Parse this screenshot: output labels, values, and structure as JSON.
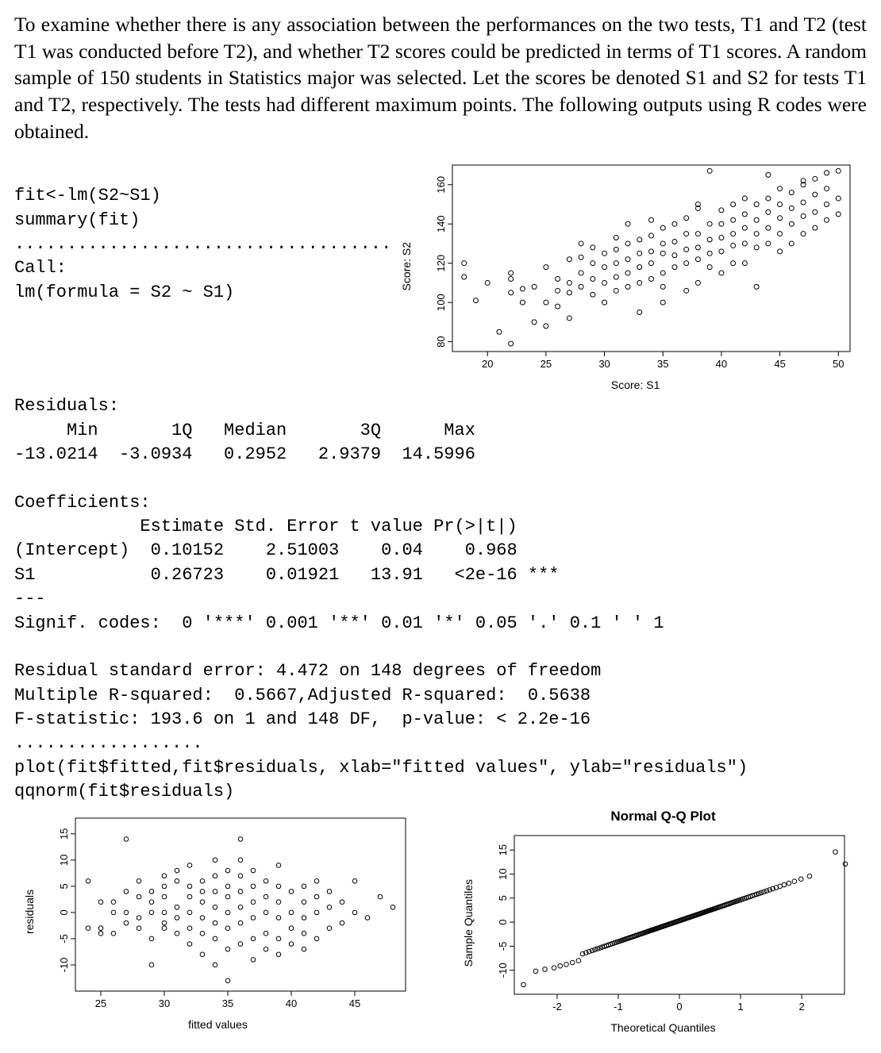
{
  "intro": "To examine whether there is any association between the performances on the two tests, T1 and T2 (test T1 was conducted before T2), and whether T2 scores could be predicted in terms of T1 scores. A random sample of 150 students in Statistics major was selected. Let the scores be denoted S1 and S2 for tests T1 and T2, respectively. The tests had different maximum points. The following outputs using R codes were obtained.",
  "code_block_top": "fit<-lm(S2~S1)\nsummary(fit)\n....................................\nCall:\nlm(formula = S2 ~ S1)",
  "code_block_mid": "Residuals:\n     Min       1Q   Median       3Q      Max\n-13.0214  -3.0934   0.2952   2.9379  14.5996\n\nCoefficients:\n            Estimate Std. Error t value Pr(>|t|)\n(Intercept)  0.10152    2.51003    0.04    0.968\nS1           0.26723    0.01921   13.91   <2e-16 ***\n---\nSignif. codes:  0 '***' 0.001 '**' 0.01 '*' 0.05 '.' 0.1 ' ' 1\n\nResidual standard error: 4.472 on 148 degrees of freedom\nMultiple R-squared:  0.5667,Adjusted R-squared:  0.5638\nF-statistic: 193.6 on 1 and 148 DF,  p-value: < 2.2e-16\n..................\nplot(fit$fitted,fit$residuals, xlab=\"fitted values\", ylab=\"residuals\")\nqqnorm(fit$residuals)",
  "scatter": {
    "type": "scatter",
    "xlabel": "Score: S1",
    "ylabel": "Score: S2",
    "xlim": [
      17,
      51
    ],
    "ylim": [
      75,
      170
    ],
    "xticks": [
      20,
      25,
      30,
      35,
      40,
      45,
      50
    ],
    "yticks": [
      80,
      100,
      120,
      140,
      160
    ],
    "point_color": "#000000",
    "point_fill": "none",
    "point_radius": 3.0,
    "background_color": "#ffffff",
    "border_color": "#000000",
    "points": [
      [
        18,
        120
      ],
      [
        18,
        113
      ],
      [
        19,
        101
      ],
      [
        20,
        110
      ],
      [
        21,
        85
      ],
      [
        22,
        79
      ],
      [
        22,
        112
      ],
      [
        22,
        105
      ],
      [
        22,
        115
      ],
      [
        23,
        100
      ],
      [
        23,
        107
      ],
      [
        24,
        90
      ],
      [
        24,
        108
      ],
      [
        25,
        88
      ],
      [
        25,
        118
      ],
      [
        25,
        100
      ],
      [
        26,
        98
      ],
      [
        26,
        106
      ],
      [
        26,
        112
      ],
      [
        27,
        122
      ],
      [
        27,
        110
      ],
      [
        27,
        92
      ],
      [
        27,
        105
      ],
      [
        28,
        108
      ],
      [
        28,
        115
      ],
      [
        28,
        123
      ],
      [
        28,
        130
      ],
      [
        29,
        104
      ],
      [
        29,
        112
      ],
      [
        29,
        120
      ],
      [
        29,
        128
      ],
      [
        30,
        100
      ],
      [
        30,
        110
      ],
      [
        30,
        118
      ],
      [
        30,
        125
      ],
      [
        31,
        106
      ],
      [
        31,
        113
      ],
      [
        31,
        120
      ],
      [
        31,
        127
      ],
      [
        31,
        133
      ],
      [
        32,
        140
      ],
      [
        32,
        108
      ],
      [
        32,
        115
      ],
      [
        32,
        122
      ],
      [
        32,
        130
      ],
      [
        33,
        95
      ],
      [
        33,
        110
      ],
      [
        33,
        118
      ],
      [
        33,
        125
      ],
      [
        33,
        132
      ],
      [
        34,
        112
      ],
      [
        34,
        120
      ],
      [
        34,
        126
      ],
      [
        34,
        134
      ],
      [
        34,
        142
      ],
      [
        35,
        100
      ],
      [
        35,
        108
      ],
      [
        35,
        115
      ],
      [
        35,
        125
      ],
      [
        35,
        130
      ],
      [
        35,
        138
      ],
      [
        36,
        118
      ],
      [
        36,
        124
      ],
      [
        36,
        131
      ],
      [
        36,
        140
      ],
      [
        37,
        106
      ],
      [
        37,
        120
      ],
      [
        37,
        127
      ],
      [
        37,
        135
      ],
      [
        37,
        143
      ],
      [
        38,
        110
      ],
      [
        38,
        122
      ],
      [
        38,
        128
      ],
      [
        38,
        135
      ],
      [
        38,
        148
      ],
      [
        38,
        150
      ],
      [
        39,
        118
      ],
      [
        39,
        125
      ],
      [
        39,
        132
      ],
      [
        39,
        140
      ],
      [
        39,
        167
      ],
      [
        40,
        115
      ],
      [
        40,
        126
      ],
      [
        40,
        133
      ],
      [
        40,
        140
      ],
      [
        40,
        147
      ],
      [
        41,
        120
      ],
      [
        41,
        129
      ],
      [
        41,
        135
      ],
      [
        41,
        142
      ],
      [
        41,
        150
      ],
      [
        42,
        120
      ],
      [
        42,
        130
      ],
      [
        42,
        138
      ],
      [
        42,
        145
      ],
      [
        42,
        153
      ],
      [
        43,
        128
      ],
      [
        43,
        135
      ],
      [
        43,
        142
      ],
      [
        43,
        150
      ],
      [
        43,
        108
      ],
      [
        44,
        130
      ],
      [
        44,
        138
      ],
      [
        44,
        146
      ],
      [
        44,
        153
      ],
      [
        44,
        165
      ],
      [
        45,
        126
      ],
      [
        45,
        135
      ],
      [
        45,
        143
      ],
      [
        45,
        150
      ],
      [
        45,
        158
      ],
      [
        46,
        130
      ],
      [
        46,
        140
      ],
      [
        46,
        148
      ],
      [
        46,
        156
      ],
      [
        47,
        135
      ],
      [
        47,
        144
      ],
      [
        47,
        151
      ],
      [
        47,
        160
      ],
      [
        47,
        162
      ],
      [
        48,
        138
      ],
      [
        48,
        146
      ],
      [
        48,
        155
      ],
      [
        48,
        163
      ],
      [
        49,
        142
      ],
      [
        49,
        150
      ],
      [
        49,
        158
      ],
      [
        49,
        166
      ],
      [
        50,
        145
      ],
      [
        50,
        153
      ],
      [
        50,
        167
      ]
    ]
  },
  "resid_plot": {
    "type": "scatter",
    "xlabel": "fitted values",
    "ylabel": "residuals",
    "xlim": [
      23,
      49
    ],
    "ylim": [
      -15,
      18
    ],
    "xticks": [
      25,
      30,
      35,
      40,
      45
    ],
    "yticks": [
      -10,
      -5,
      0,
      5,
      10,
      15
    ],
    "point_color": "#000000",
    "point_fill": "none",
    "point_radius": 2.8,
    "background_color": "#ffffff",
    "border_color": "#000000",
    "points": [
      [
        24,
        6
      ],
      [
        24,
        -3
      ],
      [
        25,
        2
      ],
      [
        25,
        -3
      ],
      [
        25,
        -4
      ],
      [
        26,
        -4
      ],
      [
        26,
        0
      ],
      [
        26,
        2
      ],
      [
        27,
        14
      ],
      [
        27,
        -2
      ],
      [
        27,
        0
      ],
      [
        27,
        4
      ],
      [
        28,
        -1
      ],
      [
        28,
        3
      ],
      [
        28,
        -3
      ],
      [
        28,
        6
      ],
      [
        29,
        -10
      ],
      [
        29,
        0
      ],
      [
        29,
        2
      ],
      [
        29,
        4
      ],
      [
        29,
        -5
      ],
      [
        30,
        3
      ],
      [
        30,
        -2
      ],
      [
        30,
        5
      ],
      [
        30,
        7
      ],
      [
        30,
        -3
      ],
      [
        30,
        0
      ],
      [
        31,
        -1
      ],
      [
        31,
        1
      ],
      [
        31,
        -4
      ],
      [
        31,
        6
      ],
      [
        31,
        8
      ],
      [
        32,
        -6
      ],
      [
        32,
        0
      ],
      [
        32,
        3
      ],
      [
        32,
        -3
      ],
      [
        32,
        5
      ],
      [
        32,
        9
      ],
      [
        33,
        -8
      ],
      [
        33,
        -1
      ],
      [
        33,
        2
      ],
      [
        33,
        4
      ],
      [
        33,
        6
      ],
      [
        33,
        -4
      ],
      [
        34,
        -10
      ],
      [
        34,
        -2
      ],
      [
        34,
        1
      ],
      [
        34,
        4
      ],
      [
        34,
        7
      ],
      [
        34,
        10
      ],
      [
        34,
        -5
      ],
      [
        35,
        -13
      ],
      [
        35,
        -7
      ],
      [
        35,
        -3
      ],
      [
        35,
        0
      ],
      [
        35,
        3
      ],
      [
        35,
        5
      ],
      [
        35,
        8
      ],
      [
        36,
        -6
      ],
      [
        36,
        -2
      ],
      [
        36,
        1
      ],
      [
        36,
        4
      ],
      [
        36,
        7
      ],
      [
        36,
        10
      ],
      [
        36,
        14
      ],
      [
        37,
        -9
      ],
      [
        37,
        -5
      ],
      [
        37,
        -1
      ],
      [
        37,
        2
      ],
      [
        37,
        5
      ],
      [
        37,
        8
      ],
      [
        38,
        -4
      ],
      [
        38,
        0
      ],
      [
        38,
        3
      ],
      [
        38,
        6
      ],
      [
        38,
        -7
      ],
      [
        39,
        -5
      ],
      [
        39,
        -1
      ],
      [
        39,
        2
      ],
      [
        39,
        5
      ],
      [
        39,
        -8
      ],
      [
        39,
        9
      ],
      [
        40,
        -3
      ],
      [
        40,
        0
      ],
      [
        40,
        4
      ],
      [
        40,
        -6
      ],
      [
        41,
        -4
      ],
      [
        41,
        2
      ],
      [
        41,
        -1
      ],
      [
        41,
        5
      ],
      [
        41,
        -7
      ],
      [
        42,
        0
      ],
      [
        42,
        3
      ],
      [
        42,
        -5
      ],
      [
        42,
        6
      ],
      [
        43,
        -3
      ],
      [
        43,
        1
      ],
      [
        43,
        4
      ],
      [
        44,
        -2
      ],
      [
        44,
        2
      ],
      [
        45,
        0
      ],
      [
        45,
        6
      ],
      [
        46,
        -1
      ],
      [
        47,
        3
      ],
      [
        48,
        1
      ]
    ]
  },
  "qq_plot": {
    "type": "qq",
    "title": "Normal Q-Q Plot",
    "xlabel": "Theoretical Quantiles",
    "ylabel": "Sample Quantiles",
    "xlim": [
      -2.7,
      2.7
    ],
    "ylim": [
      -15,
      18
    ],
    "xticks": [
      -2,
      -1,
      0,
      1,
      2
    ],
    "yticks": [
      -10,
      -5,
      0,
      5,
      10,
      15
    ],
    "point_color": "#000000",
    "point_fill": "none",
    "point_radius": 2.8,
    "background_color": "#ffffff",
    "border_color": "#000000",
    "line_slope": 4.35,
    "line_intercept": 0.3,
    "n_points": 150,
    "outliers": [
      [
        -2.55,
        -13.0
      ],
      [
        -2.35,
        -10.2
      ],
      [
        -2.2,
        -9.8
      ],
      [
        -2.05,
        -9.5
      ],
      [
        -1.95,
        -9.1
      ],
      [
        -1.85,
        -8.8
      ],
      [
        -1.75,
        -8.4
      ],
      [
        -1.65,
        -8.0
      ],
      [
        2.35,
        12.2
      ],
      [
        2.45,
        13.5
      ],
      [
        2.55,
        14.6
      ]
    ]
  }
}
